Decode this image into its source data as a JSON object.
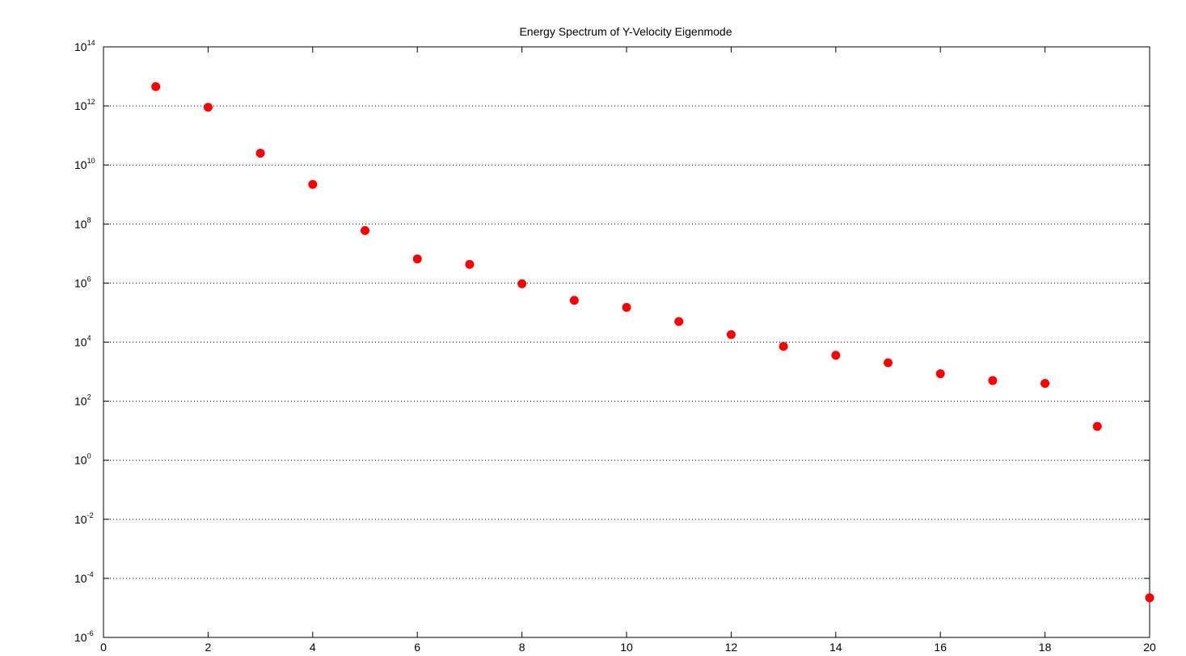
{
  "chart_data": {
    "type": "scatter",
    "title": "Energy Spectrum of Y-Velocity Eigenmode",
    "xlabel": "",
    "ylabel": "",
    "xlim": [
      0,
      20
    ],
    "ylim": [
      1e-06,
      100000000000000.0
    ],
    "yscale": "log",
    "x_ticks": [
      0,
      2,
      4,
      6,
      8,
      10,
      12,
      14,
      16,
      18,
      20
    ],
    "y_tick_exponents": [
      -6,
      -4,
      -2,
      0,
      2,
      4,
      6,
      8,
      10,
      12,
      14
    ],
    "y_tick_base": "10",
    "grid": "y-dotted",
    "marker_color": "#ff0000",
    "x": [
      1,
      2,
      3,
      4,
      5,
      6,
      7,
      8,
      9,
      10,
      11,
      12,
      13,
      14,
      15,
      16,
      17,
      18,
      19,
      20
    ],
    "y": [
      4500000000000.0,
      900000000000.0,
      25000000000.0,
      2200000000.0,
      60000000.0,
      6600000.0,
      4300000.0,
      950000.0,
      260000.0,
      150000.0,
      50000.0,
      18000.0,
      7200.0,
      3600.0,
      2000.0,
      850.0,
      500.0,
      400.0,
      14.0,
      2.2e-05
    ]
  }
}
